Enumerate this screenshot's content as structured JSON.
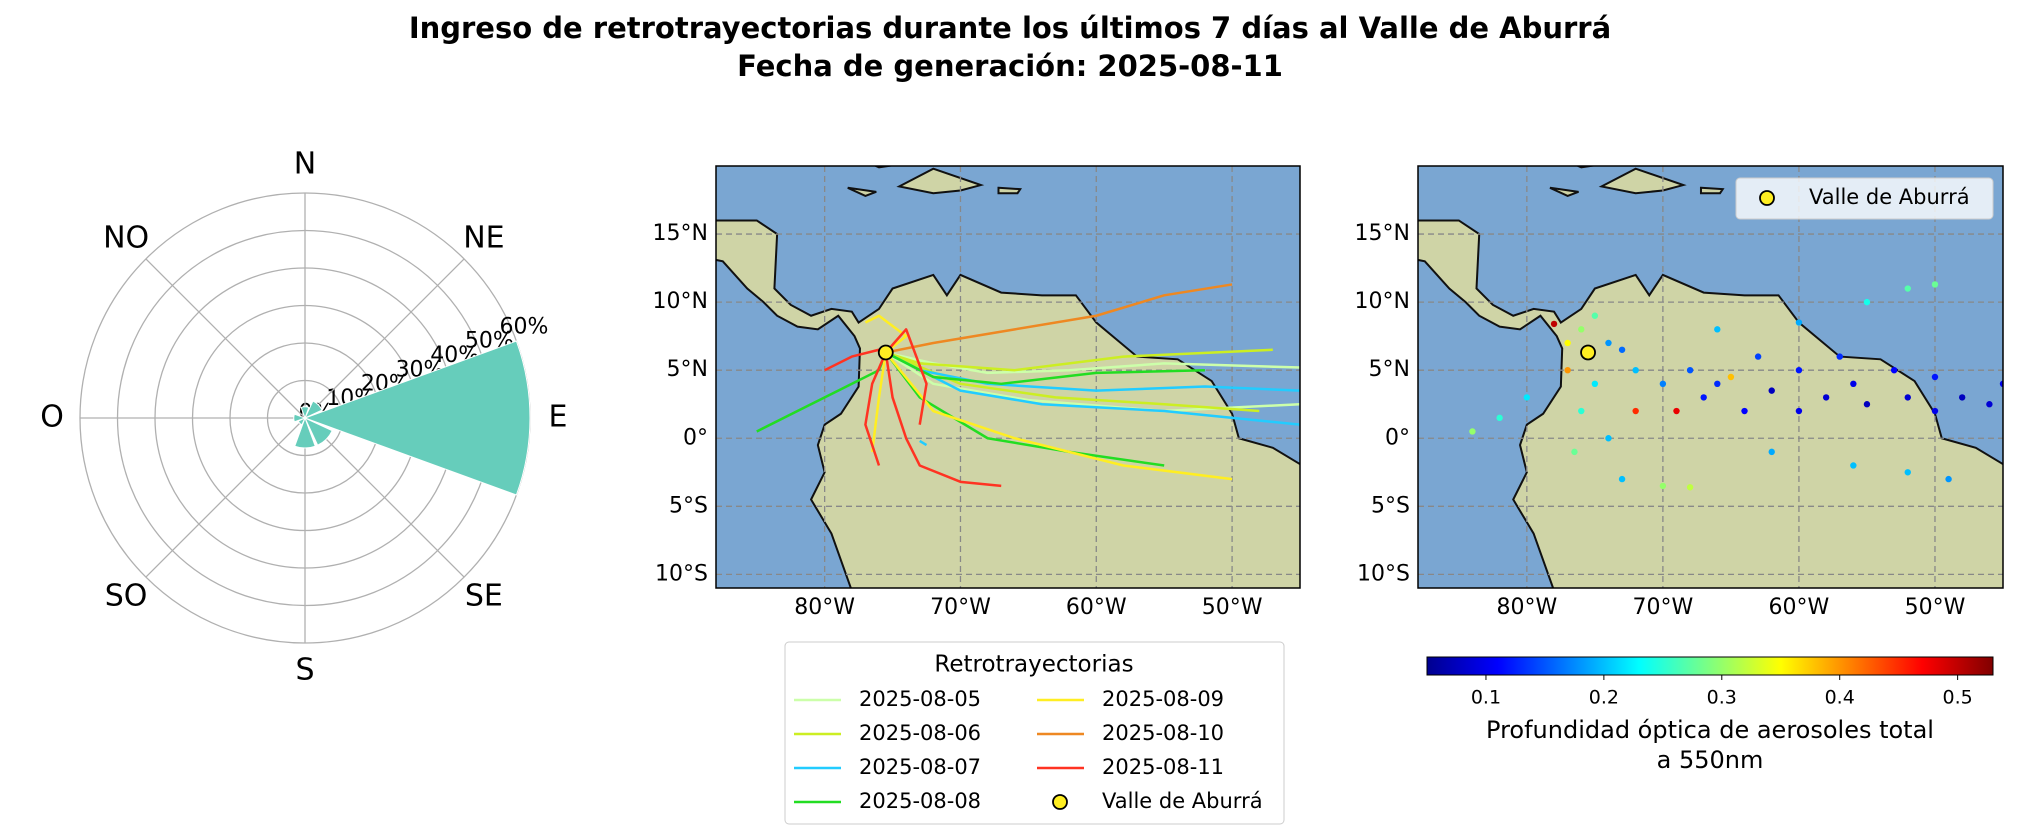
{
  "title": [
    "Ingreso de retrotrayectorias durante los últimos 7 días al Valle de Aburrá",
    "Fecha de generación: 2025-08-11"
  ],
  "chart_data": [
    {
      "type": "polar_bar",
      "categories": [
        "N",
        "NE",
        "E",
        "SE",
        "S",
        "SO",
        "O",
        "NO"
      ],
      "values": [
        3,
        5,
        60,
        8,
        8,
        2,
        3,
        0
      ],
      "color": "#66cdbb",
      "ylim": [
        0,
        60
      ],
      "yticks": [
        {
          "value": 0,
          "label": "0%"
        },
        {
          "value": 10,
          "label": "10%"
        },
        {
          "value": 20,
          "label": "20%"
        },
        {
          "value": 30,
          "label": "30%"
        },
        {
          "value": 40,
          "label": "40%"
        },
        {
          "value": 50,
          "label": "50%"
        },
        {
          "value": 60,
          "label": "60%"
        }
      ]
    },
    {
      "type": "map_lines",
      "xlim": [
        -88,
        -45
      ],
      "ylim": [
        -11,
        20
      ],
      "grid": true,
      "xticks": [
        {
          "value": -80,
          "label": "80°W"
        },
        {
          "value": -70,
          "label": "70°W"
        },
        {
          "value": -60,
          "label": "60°W"
        },
        {
          "value": -50,
          "label": "50°W"
        }
      ],
      "yticks": [
        {
          "value": -10,
          "label": "10°S"
        },
        {
          "value": -5,
          "label": "5°S"
        },
        {
          "value": 0,
          "label": "0°"
        },
        {
          "value": 5,
          "label": "5°N"
        },
        {
          "value": 10,
          "label": "10°N"
        },
        {
          "value": 15,
          "label": "15°N"
        }
      ],
      "legend_title": "Retrotrayectorias",
      "series": [
        {
          "name": "2025-08-05",
          "color": "#ccffaa",
          "x": [
            -45,
            -55,
            -62,
            -68,
            -72,
            -75.5,
            null,
            -45,
            -55,
            -65,
            -72,
            -75.5
          ],
          "values": [
            5.2,
            5.5,
            5.0,
            4.8,
            5.5,
            6.3,
            null,
            2.5,
            2.0,
            2.8,
            4,
            6.3
          ]
        },
        {
          "name": "2025-08-06",
          "color": "#ccee22",
          "x": [
            -48,
            -55,
            -63,
            -70,
            -75.5,
            null,
            -47,
            -58,
            -66,
            -73,
            -75.5
          ],
          "values": [
            2,
            2.5,
            3,
            4,
            6.3,
            null,
            6.5,
            6,
            5,
            5.5,
            6.3
          ]
        },
        {
          "name": "2025-08-07",
          "color": "#22ccff",
          "x": [
            -45,
            -52,
            -60,
            -68,
            -73,
            -75.5,
            null,
            -45,
            -55,
            -64,
            -70,
            -75.5,
            null,
            -73,
            -72.5
          ],
          "values": [
            3.5,
            3.8,
            3.5,
            4,
            5,
            6.3,
            null,
            1,
            2,
            2.5,
            3.5,
            6.3,
            null,
            -0.2,
            -0.5
          ]
        },
        {
          "name": "2025-08-08",
          "color": "#22dd22",
          "x": [
            -85,
            -82,
            -79,
            -76,
            -75.5,
            null,
            -55,
            -62,
            -68,
            -73,
            -75.5,
            null,
            -52,
            -60,
            -67,
            -72,
            -75.5
          ],
          "values": [
            0.5,
            2,
            3.5,
            5,
            6.3,
            null,
            -2,
            -1,
            0,
            3,
            6.3,
            null,
            5,
            4.8,
            4,
            4.5,
            6.3
          ]
        },
        {
          "name": "2025-08-09",
          "color": "#ffee22",
          "x": [
            -77,
            -76,
            -74,
            -75.5,
            null,
            -50,
            -58,
            -66,
            -72,
            -75.5,
            null,
            -76.5,
            -76,
            -75.5
          ],
          "values": [
            8.5,
            9,
            7.5,
            6.3,
            null,
            -3,
            -2,
            0,
            2,
            6.3,
            null,
            -1,
            3,
            6.3
          ]
        },
        {
          "name": "2025-08-10",
          "color": "#ee8822",
          "x": [
            -50,
            -55,
            -60,
            -66,
            -72,
            -75.5
          ],
          "values": [
            11.3,
            10.5,
            9,
            8,
            7,
            6.3
          ]
        },
        {
          "name": "2025-08-11",
          "color": "#ff3322",
          "x": [
            -80,
            -78,
            -76,
            -75.5,
            null,
            -67,
            -70,
            -73,
            -74,
            -75,
            -75.5,
            null,
            -76,
            -77,
            -76.5,
            -75.5,
            null,
            -73,
            -72.5,
            -74,
            -75.5
          ],
          "values": [
            5,
            6,
            6.5,
            6.3,
            null,
            -3.5,
            -3.2,
            -2,
            0,
            3,
            6.3,
            null,
            -2,
            1,
            4,
            6.3,
            null,
            1,
            4,
            8,
            6.3
          ]
        }
      ],
      "point": {
        "name": "Valle de Aburrá",
        "color": "#ffee22",
        "x": -75.5,
        "y": 6.3
      }
    },
    {
      "type": "map_scatter",
      "xlim": [
        -88,
        -45
      ],
      "ylim": [
        -11,
        20
      ],
      "grid": true,
      "xticks": [
        {
          "value": -80,
          "label": "80°W"
        },
        {
          "value": -70,
          "label": "70°W"
        },
        {
          "value": -60,
          "label": "60°W"
        },
        {
          "value": -50,
          "label": "50°W"
        }
      ],
      "yticks": [
        {
          "value": -10,
          "label": "10°S"
        },
        {
          "value": -5,
          "label": "5°S"
        },
        {
          "value": 0,
          "label": "0°"
        },
        {
          "value": 5,
          "label": "5°N"
        },
        {
          "value": 10,
          "label": "10°N"
        },
        {
          "value": 15,
          "label": "15°N"
        }
      ],
      "x": [
        -45,
        -46,
        -48,
        -50,
        -50,
        -52,
        -53,
        -55,
        -56,
        -57,
        -58,
        -60,
        -60,
        -62,
        -63,
        -64,
        -66,
        -67,
        -68,
        -70,
        -72,
        -73,
        -74,
        -76,
        -77,
        -75,
        -76,
        -76.5,
        -74,
        -73,
        -70,
        -68,
        -82,
        -84,
        -80,
        -66,
        -60,
        -55,
        -52,
        -50,
        -56,
        -52,
        -49,
        -62,
        -72,
        -69,
        -65,
        -77,
        -75,
        -78
      ],
      "values": [
        4,
        2.5,
        3,
        2,
        4.5,
        3,
        5,
        2.5,
        4,
        6,
        3,
        2,
        5,
        3.5,
        6,
        2,
        4,
        3,
        5,
        4,
        5,
        6.5,
        7,
        8,
        7,
        4,
        2,
        -1,
        0,
        -3,
        -3.5,
        -3.6,
        1.5,
        0.5,
        3,
        8,
        8.5,
        10,
        11,
        11.3,
        -2,
        -2.5,
        -3,
        -1,
        2,
        2,
        4.5,
        5,
        9,
        8.4
      ],
      "aod": [
        0.1,
        0.09,
        0.08,
        0.1,
        0.12,
        0.09,
        0.11,
        0.08,
        0.1,
        0.13,
        0.09,
        0.1,
        0.12,
        0.08,
        0.14,
        0.11,
        0.13,
        0.12,
        0.15,
        0.17,
        0.2,
        0.16,
        0.18,
        0.3,
        0.35,
        0.22,
        0.25,
        0.28,
        0.2,
        0.2,
        0.3,
        0.32,
        0.25,
        0.3,
        0.22,
        0.2,
        0.19,
        0.24,
        0.27,
        0.28,
        0.2,
        0.2,
        0.18,
        0.19,
        0.45,
        0.48,
        0.38,
        0.4,
        0.27,
        0.5
      ],
      "colormap": "jet",
      "clim": [
        0.05,
        0.53
      ],
      "cticks": [
        0.1,
        0.2,
        0.3,
        0.4,
        0.5
      ],
      "clabel": [
        "Profundidad óptica de aerosoles total",
        "a 550nm"
      ],
      "point": {
        "name": "Valle de Aburrá",
        "color": "#ffee22",
        "x": -75.5,
        "y": 6.3
      }
    }
  ]
}
